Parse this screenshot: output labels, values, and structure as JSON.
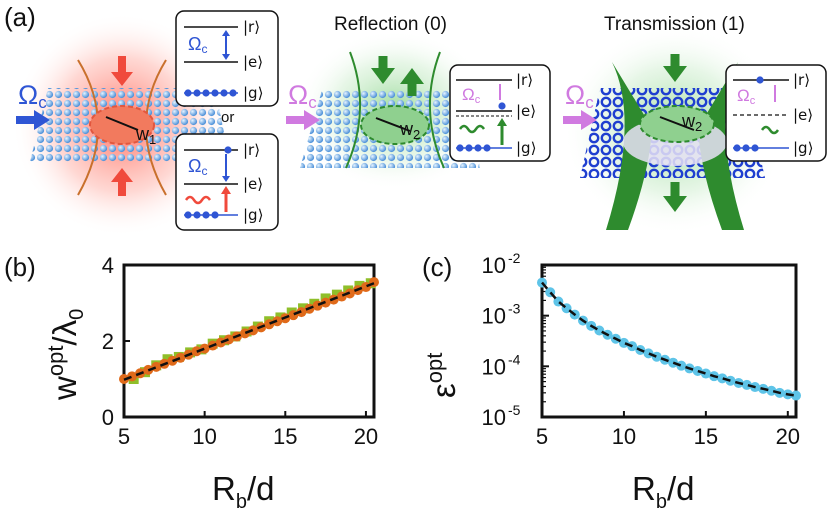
{
  "figure": {
    "panel_a_label": "(a)",
    "panel_b_label": "(b)",
    "panel_c_label": "(c)",
    "omega_label": "Ω",
    "omega_sub": "c",
    "w1_label": "w",
    "w1_sub": "1",
    "w2_label": "w",
    "w2_sub": "2",
    "w3_label": "w",
    "w3_sub": "2",
    "reflection_title": "Reflection (0)",
    "transmission_title": "Transmission (1)",
    "or_label": "or",
    "ket_r": "|r⟩",
    "ket_e": "|e⟩",
    "ket_g": "|g⟩",
    "colors": {
      "red": "#f04a3c",
      "green": "#2e8b2e",
      "blue": "#2f55d4",
      "violet": "#d07ae0",
      "orange": "#e06a1a",
      "lightgreen": "#8fbf2a",
      "cyan": "#5ec4e8"
    }
  },
  "chart_data": [
    {
      "panel": "(b)",
      "type": "scatter",
      "xlabel": "R",
      "xlabel_sub": "b",
      "xlabel_tail": "/d",
      "ylabel": "w",
      "ylabel_sup": "opt",
      "ylabel_tail": "/λ",
      "ylabel_sub": "0",
      "xlim": [
        5,
        20.5
      ],
      "ylim": [
        0,
        4
      ],
      "xticks": [
        5,
        10,
        15,
        20
      ],
      "yticks": [
        0,
        2,
        4
      ],
      "series": [
        {
          "marker": "square",
          "color": "#8fbf2a",
          "x": [
            5.6,
            6.3,
            7.0,
            7.7,
            8.4,
            9.1,
            9.8,
            10.5,
            11.2,
            11.9,
            12.6,
            13.3,
            14.0,
            14.7,
            15.4,
            16.1,
            16.8,
            17.5,
            18.2,
            18.9,
            19.6,
            20.3
          ],
          "y": [
            1.0,
            1.18,
            1.36,
            1.52,
            1.58,
            1.7,
            1.78,
            1.93,
            2.02,
            2.12,
            2.25,
            2.38,
            2.52,
            2.62,
            2.75,
            2.86,
            2.98,
            3.12,
            3.22,
            3.33,
            3.45,
            3.52
          ]
        },
        {
          "marker": "circle",
          "color": "#e06a1a",
          "x": [
            5.0,
            5.5,
            6.0,
            6.5,
            7.0,
            7.5,
            8.0,
            8.5,
            9.0,
            9.5,
            10.0,
            10.5,
            11.0,
            11.5,
            12.0,
            12.5,
            13.0,
            13.5,
            14.0,
            14.5,
            15.0,
            15.5,
            16.0,
            16.5,
            17.0,
            17.5,
            18.0,
            18.5,
            19.0,
            19.5,
            20.0,
            20.5
          ],
          "y": [
            1.0,
            1.07,
            1.15,
            1.24,
            1.32,
            1.4,
            1.48,
            1.56,
            1.64,
            1.73,
            1.8,
            1.88,
            1.96,
            2.04,
            2.12,
            2.2,
            2.28,
            2.36,
            2.44,
            2.52,
            2.6,
            2.68,
            2.76,
            2.85,
            2.93,
            3.01,
            3.09,
            3.17,
            3.25,
            3.34,
            3.42,
            3.55
          ]
        }
      ],
      "fit_line": {
        "x": [
          5,
          20.5
        ],
        "y": [
          0.98,
          3.52
        ]
      }
    },
    {
      "panel": "(c)",
      "type": "scatter",
      "xlabel": "R",
      "xlabel_sub": "b",
      "xlabel_tail": "/d",
      "ylabel": "ε",
      "ylabel_sup": "opt",
      "xlim": [
        5,
        20.5
      ],
      "ylim_log10": [
        -5,
        -2
      ],
      "xticks": [
        5,
        10,
        15,
        20
      ],
      "ytick_base": "10",
      "ytick_exponents": [
        "-2",
        "-3",
        "-4",
        "-5"
      ],
      "series": [
        {
          "marker": "circle",
          "color": "#5ec4e8",
          "x": [
            5.0,
            5.5,
            6.0,
            6.5,
            7.0,
            7.5,
            8.0,
            8.5,
            9.0,
            9.5,
            10.0,
            10.5,
            11.0,
            11.5,
            12.0,
            12.5,
            13.0,
            13.5,
            14.0,
            14.5,
            15.0,
            15.5,
            16.0,
            16.5,
            17.0,
            17.5,
            18.0,
            18.5,
            19.0,
            19.5,
            20.0,
            20.5
          ],
          "y": [
            0.0045,
            0.0029,
            0.0019,
            0.0014,
            0.00105,
            0.0008,
            0.00063,
            0.00051,
            0.00042,
            0.00035,
            0.00029,
            0.00025,
            0.00021,
            0.00018,
            0.000155,
            0.000135,
            0.000118,
            0.000103,
            9.1e-05,
            8.1e-05,
            7.2e-05,
            6.4e-05,
            5.8e-05,
            5.2e-05,
            4.7e-05,
            4.3e-05,
            3.9e-05,
            3.6e-05,
            3.3e-05,
            3e-05,
            2.8e-05,
            2.65e-05
          ]
        }
      ],
      "fit_line": {
        "x_start": 5,
        "x_end": 20.5
      }
    }
  ]
}
